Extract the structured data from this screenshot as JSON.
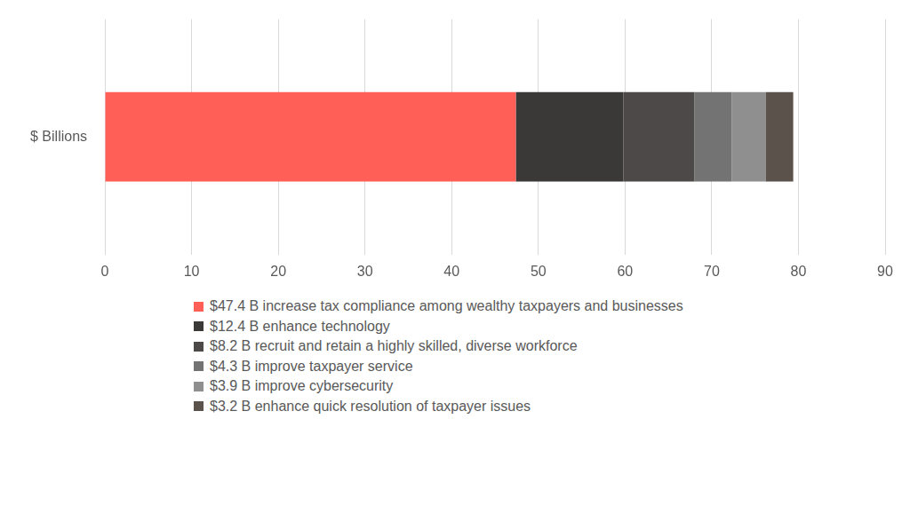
{
  "chart_data": {
    "type": "bar",
    "orientation": "horizontal",
    "stacked": true,
    "categories": [
      "$ Billions"
    ],
    "series": [
      {
        "name": "$47.4 B increase tax compliance among wealthy taxpayers and businesses",
        "color": "#ff5f57",
        "values": [
          47.4
        ]
      },
      {
        "name": "$12.4 B enhance technology",
        "color": "#3b3937",
        "values": [
          12.4
        ]
      },
      {
        "name": "$8.2 B recruit and retain a highly skilled, diverse workforce",
        "color": "#4d4948",
        "values": [
          8.2
        ]
      },
      {
        "name": "$4.3 B improve taxpayer service",
        "color": "#737373",
        "values": [
          4.3
        ]
      },
      {
        "name": "$3.9 B improve cybersecurity",
        "color": "#8f8f8f",
        "values": [
          3.9
        ]
      },
      {
        "name": "$3.2 B enhance quick resolution of taxpayer issues",
        "color": "#5b524c",
        "values": [
          3.2
        ]
      }
    ],
    "xlim": [
      0,
      90
    ],
    "xticks": [
      0,
      10,
      20,
      30,
      40,
      50,
      60,
      70,
      80,
      90
    ],
    "grid": true,
    "legend": "bottom"
  }
}
